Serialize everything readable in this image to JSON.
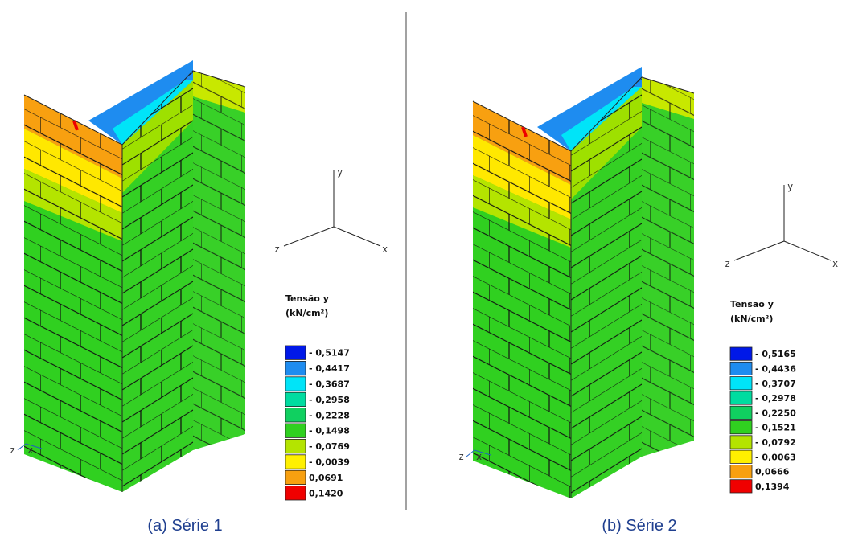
{
  "panels": [
    {
      "caption": "(a) Série 1",
      "axis_labels": {
        "y": "y",
        "z": "z",
        "x": "x"
      },
      "origin_labels": {
        "z": "z",
        "x": "x"
      },
      "legend": {
        "title": "Tensão y",
        "unit": "(kN/cm²)",
        "entries": [
          {
            "label": "- 0,5147",
            "color": "#0018e8"
          },
          {
            "label": "- 0,4417",
            "color": "#1e8cf0"
          },
          {
            "label": "- 0,3687",
            "color": "#00e4f8"
          },
          {
            "label": "- 0,2958",
            "color": "#00dca0"
          },
          {
            "label": "- 0,2228",
            "color": "#10d060"
          },
          {
            "label": "- 0,1498",
            "color": "#30d020"
          },
          {
            "label": "- 0,0769",
            "color": "#b4e400"
          },
          {
            "label": "- 0,0039",
            "color": "#fff000"
          },
          {
            "label": "0,0691",
            "color": "#f8a010"
          },
          {
            "label": "0,1420",
            "color": "#f00000"
          }
        ]
      }
    },
    {
      "caption": "(b) Série 2",
      "axis_labels": {
        "y": "y",
        "z": "z",
        "x": "x"
      },
      "origin_labels": {
        "z": "z",
        "x": "x"
      },
      "legend": {
        "title": "Tensão y",
        "unit": "(kN/cm²)",
        "entries": [
          {
            "label": "- 0,5165",
            "color": "#0018e8"
          },
          {
            "label": "- 0,4436",
            "color": "#1e8cf0"
          },
          {
            "label": "- 0,3707",
            "color": "#00e4f8"
          },
          {
            "label": "- 0,2978",
            "color": "#00dca0"
          },
          {
            "label": "- 0,2250",
            "color": "#10d060"
          },
          {
            "label": "- 0,1521",
            "color": "#30d020"
          },
          {
            "label": "- 0,0792",
            "color": "#b4e400"
          },
          {
            "label": "- 0,0063",
            "color": "#fff000"
          },
          {
            "label": "0,0666",
            "color": "#f8a010"
          },
          {
            "label": "0,1394",
            "color": "#f00000"
          }
        ]
      }
    }
  ]
}
